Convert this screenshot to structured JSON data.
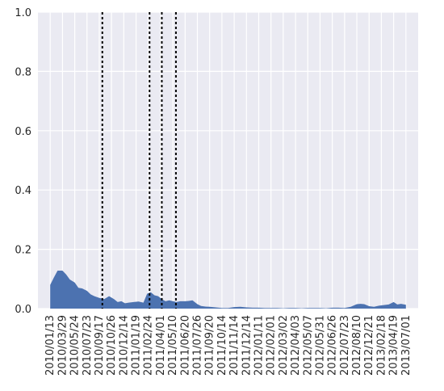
{
  "chart_data": {
    "type": "area",
    "title": "",
    "xlabel": "",
    "ylabel": "",
    "ylim": [
      0.0,
      1.0
    ],
    "y_ticks": [
      0.0,
      0.2,
      0.4,
      0.6,
      0.8,
      1.0
    ],
    "y_tick_labels": [
      "0.0",
      "0.2",
      "0.4",
      "0.6",
      "0.8",
      "1.0"
    ],
    "x_tick_labels": [
      "2010/01/13",
      "2010/03/29",
      "2010/05/24",
      "2010/07/23",
      "2010/09/17",
      "2010/10/26",
      "2010/12/14",
      "2011/01/19",
      "2011/02/24",
      "2011/04/01",
      "2011/05/10",
      "2011/06/20",
      "2011/07/26",
      "2011/09/20",
      "2011/10/14",
      "2011/11/14",
      "2011/12/14",
      "2012/01/11",
      "2012/02/01",
      "2012/03/02",
      "2012/04/03",
      "2012/05/07",
      "2012/05/31",
      "2012/06/26",
      "2012/07/23",
      "2012/08/10",
      "2012/12/21",
      "2013/02/18",
      "2013/04/19",
      "2013/07/01"
    ],
    "grid": true,
    "fill_color": "#4c72b0",
    "background_color": "#eaeaf2",
    "vlines_at_x": [
      4.25,
      8.1,
      9.1,
      10.25
    ],
    "vline_style": "dotted",
    "vline_color": "#000000",
    "series": [
      {
        "x": [
          0,
          0.3,
          0.6,
          1.0,
          1.3,
          1.6,
          2.0,
          2.3,
          2.6,
          3.0,
          3.3,
          3.6,
          4.0,
          4.4,
          4.8,
          5.2,
          5.5,
          5.8,
          6.1,
          6.4,
          6.8,
          7.2,
          7.6,
          7.9,
          8.2,
          8.5,
          8.8,
          9.1,
          9.4,
          9.7,
          10.0,
          10.3,
          10.6,
          11.0,
          11.3,
          11.6,
          12.0,
          12.3,
          12.6,
          13.0,
          13.5,
          14.0,
          14.5,
          15.0,
          15.5,
          16.0,
          16.5,
          17.0,
          17.5,
          18.0,
          18.5,
          19.0,
          19.5,
          20.0,
          20.5,
          21.0,
          21.5,
          22.0,
          22.5,
          23.0,
          23.5,
          24.0,
          24.5,
          25.0,
          25.3,
          25.6,
          26.0,
          26.4,
          26.8,
          27.2,
          27.6,
          28.0,
          28.3,
          28.6,
          29.0
        ],
        "values": [
          0.08,
          0.105,
          0.128,
          0.128,
          0.115,
          0.098,
          0.088,
          0.07,
          0.068,
          0.06,
          0.048,
          0.042,
          0.036,
          0.032,
          0.042,
          0.032,
          0.022,
          0.025,
          0.018,
          0.02,
          0.022,
          0.024,
          0.02,
          0.05,
          0.055,
          0.045,
          0.042,
          0.032,
          0.025,
          0.028,
          0.025,
          0.022,
          0.025,
          0.025,
          0.026,
          0.028,
          0.015,
          0.009,
          0.007,
          0.006,
          0.004,
          0.002,
          0.002,
          0.005,
          0.006,
          0.004,
          0.003,
          0.003,
          0.002,
          0.002,
          0.002,
          0.001,
          0.002,
          0.002,
          0.001,
          0.002,
          0.002,
          0.002,
          0.001,
          0.003,
          0.003,
          0.002,
          0.006,
          0.015,
          0.016,
          0.015,
          0.008,
          0.006,
          0.01,
          0.012,
          0.014,
          0.022,
          0.014,
          0.016,
          0.013
        ]
      }
    ]
  }
}
